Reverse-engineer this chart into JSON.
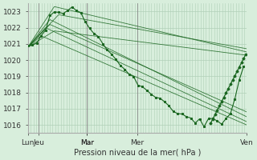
{
  "background_color": "#d8eedc",
  "grid_color": "#b0d0b8",
  "line_color": "#1a6620",
  "ylabel": "Pression niveau de la mer( hPa )",
  "ylim": [
    1015.5,
    1023.5
  ],
  "yticks": [
    1016,
    1017,
    1018,
    1019,
    1020,
    1021,
    1022,
    1023
  ],
  "x_day_labels": [
    "Lun",
    "Jeu",
    "Mar",
    "Mar",
    "Mer",
    "Ven"
  ],
  "x_day_positions": [
    0,
    0.05,
    0.27,
    0.27,
    0.5,
    1.0
  ],
  "xlim": [
    0,
    1.0
  ],
  "figsize": [
    3.2,
    2.0
  ],
  "dpi": 100
}
